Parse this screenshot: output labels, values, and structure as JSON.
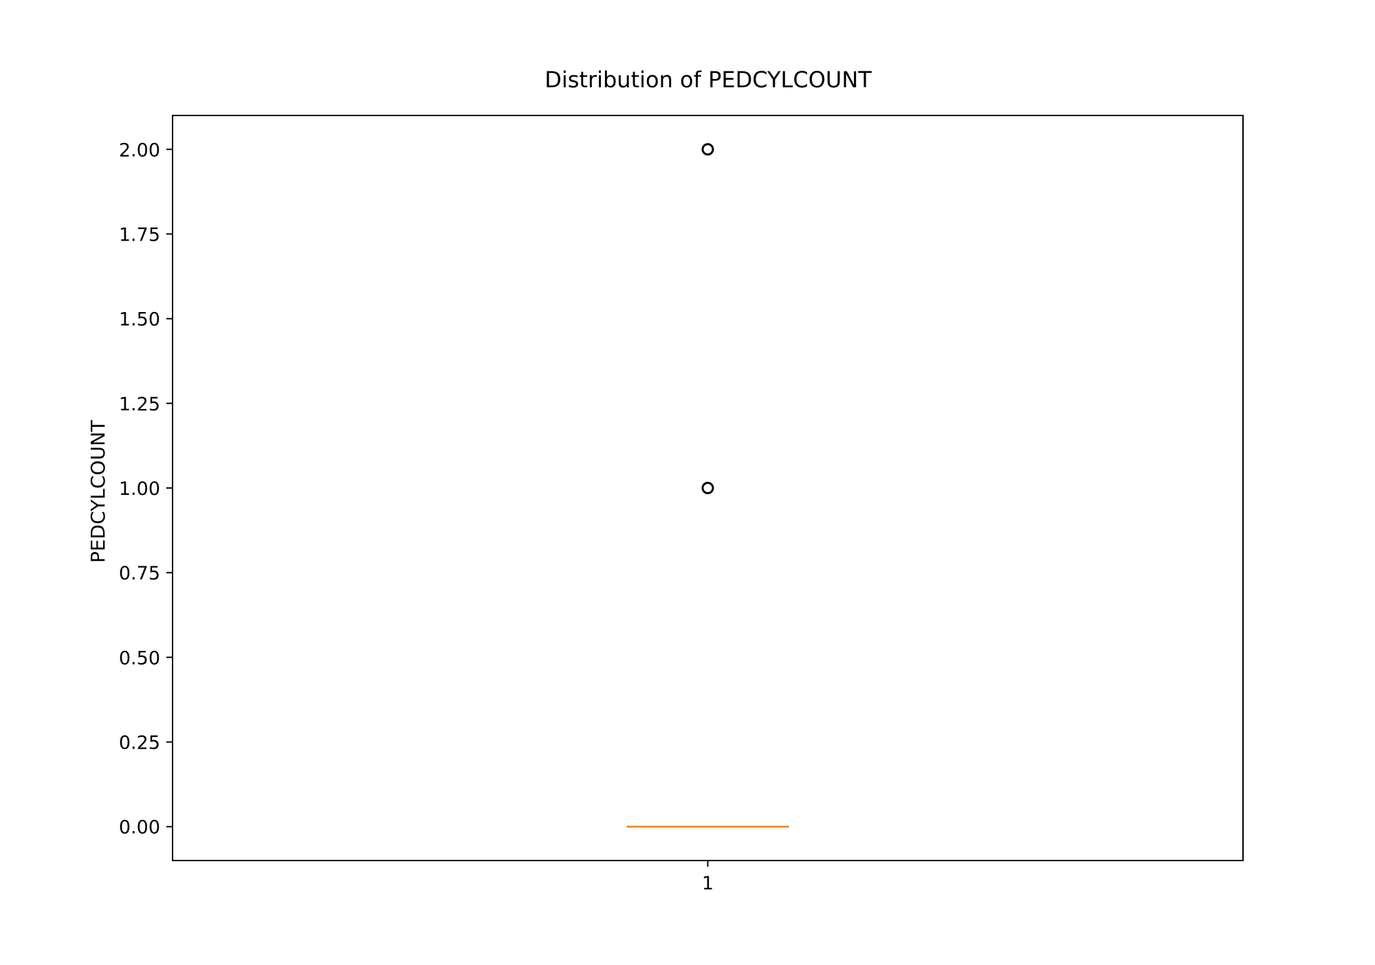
{
  "chart_data": {
    "type": "box",
    "title": "Distribution of PEDCYLCOUNT",
    "xlabel": "",
    "ylabel": "PEDCYLCOUNT",
    "categories": [
      "1"
    ],
    "ylim": [
      -0.1,
      2.1
    ],
    "yticks": [
      0.0,
      0.25,
      0.5,
      0.75,
      1.0,
      1.25,
      1.5,
      1.75,
      2.0
    ],
    "ytick_labels": [
      "0.00",
      "0.25",
      "0.50",
      "0.75",
      "1.00",
      "1.25",
      "1.50",
      "1.75",
      "2.00"
    ],
    "boxes": [
      {
        "category": "1",
        "min": 0.0,
        "q1": 0.0,
        "median": 0.0,
        "q3": 0.0,
        "max": 0.0,
        "outliers": [
          1.0,
          2.0
        ]
      }
    ],
    "grid": false,
    "colors": {
      "median": "#ff7f0e",
      "box": "#000000",
      "outlier": "#000000"
    }
  }
}
